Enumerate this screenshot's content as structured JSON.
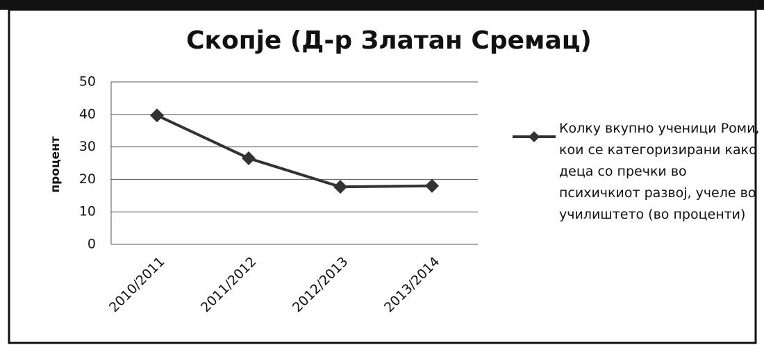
{
  "chart_data": {
    "type": "line",
    "title": "Скопје (Д-р Златан Сремац)",
    "ylabel": "процент",
    "categories": [
      "2010/2011",
      "2011/2012",
      "2012/2013",
      "2013/2014"
    ],
    "series": [
      {
        "name": "Колку вкупно ученици Роми, кои се категоризирани како деца со пречки во психичкиот развој, учеле во училиштето (во проценти)",
        "color": "#333333",
        "values": [
          39.7,
          26.5,
          17.7,
          18.0
        ]
      }
    ],
    "ylim": [
      0,
      50
    ],
    "yticks": [
      0,
      10,
      20,
      30,
      40,
      50
    ],
    "grid": true,
    "legend": "right"
  }
}
